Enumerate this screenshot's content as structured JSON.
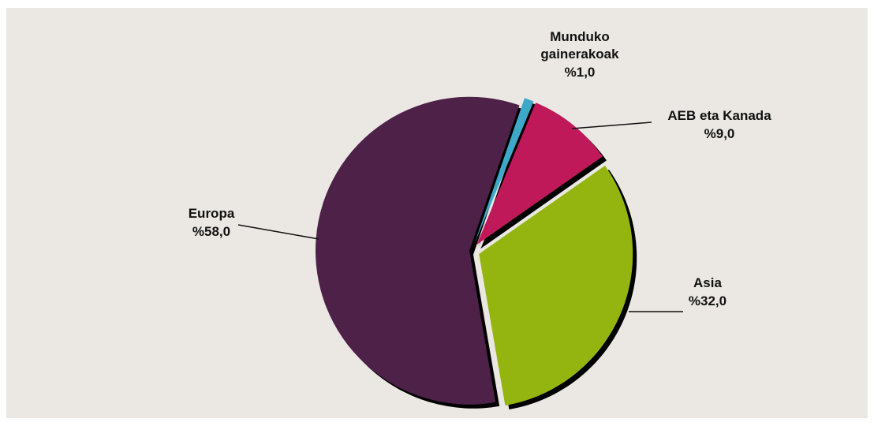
{
  "chart_data": {
    "type": "pie",
    "categories": [
      "Munduko gainerakoak",
      "AEB eta Kanada",
      "Asia",
      "Europa"
    ],
    "values": [
      1.0,
      9.0,
      32.0,
      58.0
    ],
    "value_labels": [
      "%1,0",
      "%9,0",
      "%32,0",
      "%58,0"
    ],
    "colors": [
      "#3ea8c8",
      "#c0195a",
      "#94b50f",
      "#4d2148"
    ]
  }
}
